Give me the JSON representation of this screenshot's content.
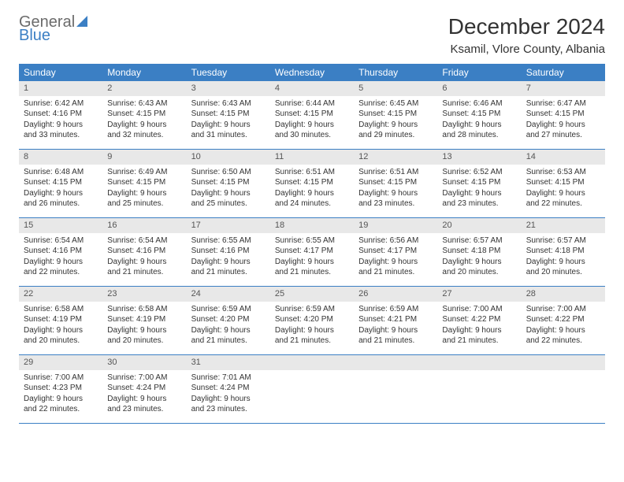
{
  "brand": {
    "general": "General",
    "blue": "Blue"
  },
  "title": "December 2024",
  "location": "Ksamil, Vlore County, Albania",
  "colors": {
    "header_bg": "#3b7fc4",
    "header_text": "#ffffff",
    "daynum_bg": "#e8e8e8",
    "row_border": "#3b7fc4",
    "logo_gray": "#6b6b6b",
    "logo_blue": "#3b7fc4"
  },
  "days_of_week": [
    "Sunday",
    "Monday",
    "Tuesday",
    "Wednesday",
    "Thursday",
    "Friday",
    "Saturday"
  ],
  "weeks": [
    [
      {
        "n": "1",
        "sunrise": "Sunrise: 6:42 AM",
        "sunset": "Sunset: 4:16 PM",
        "daylight": "Daylight: 9 hours and 33 minutes."
      },
      {
        "n": "2",
        "sunrise": "Sunrise: 6:43 AM",
        "sunset": "Sunset: 4:15 PM",
        "daylight": "Daylight: 9 hours and 32 minutes."
      },
      {
        "n": "3",
        "sunrise": "Sunrise: 6:43 AM",
        "sunset": "Sunset: 4:15 PM",
        "daylight": "Daylight: 9 hours and 31 minutes."
      },
      {
        "n": "4",
        "sunrise": "Sunrise: 6:44 AM",
        "sunset": "Sunset: 4:15 PM",
        "daylight": "Daylight: 9 hours and 30 minutes."
      },
      {
        "n": "5",
        "sunrise": "Sunrise: 6:45 AM",
        "sunset": "Sunset: 4:15 PM",
        "daylight": "Daylight: 9 hours and 29 minutes."
      },
      {
        "n": "6",
        "sunrise": "Sunrise: 6:46 AM",
        "sunset": "Sunset: 4:15 PM",
        "daylight": "Daylight: 9 hours and 28 minutes."
      },
      {
        "n": "7",
        "sunrise": "Sunrise: 6:47 AM",
        "sunset": "Sunset: 4:15 PM",
        "daylight": "Daylight: 9 hours and 27 minutes."
      }
    ],
    [
      {
        "n": "8",
        "sunrise": "Sunrise: 6:48 AM",
        "sunset": "Sunset: 4:15 PM",
        "daylight": "Daylight: 9 hours and 26 minutes."
      },
      {
        "n": "9",
        "sunrise": "Sunrise: 6:49 AM",
        "sunset": "Sunset: 4:15 PM",
        "daylight": "Daylight: 9 hours and 25 minutes."
      },
      {
        "n": "10",
        "sunrise": "Sunrise: 6:50 AM",
        "sunset": "Sunset: 4:15 PM",
        "daylight": "Daylight: 9 hours and 25 minutes."
      },
      {
        "n": "11",
        "sunrise": "Sunrise: 6:51 AM",
        "sunset": "Sunset: 4:15 PM",
        "daylight": "Daylight: 9 hours and 24 minutes."
      },
      {
        "n": "12",
        "sunrise": "Sunrise: 6:51 AM",
        "sunset": "Sunset: 4:15 PM",
        "daylight": "Daylight: 9 hours and 23 minutes."
      },
      {
        "n": "13",
        "sunrise": "Sunrise: 6:52 AM",
        "sunset": "Sunset: 4:15 PM",
        "daylight": "Daylight: 9 hours and 23 minutes."
      },
      {
        "n": "14",
        "sunrise": "Sunrise: 6:53 AM",
        "sunset": "Sunset: 4:15 PM",
        "daylight": "Daylight: 9 hours and 22 minutes."
      }
    ],
    [
      {
        "n": "15",
        "sunrise": "Sunrise: 6:54 AM",
        "sunset": "Sunset: 4:16 PM",
        "daylight": "Daylight: 9 hours and 22 minutes."
      },
      {
        "n": "16",
        "sunrise": "Sunrise: 6:54 AM",
        "sunset": "Sunset: 4:16 PM",
        "daylight": "Daylight: 9 hours and 21 minutes."
      },
      {
        "n": "17",
        "sunrise": "Sunrise: 6:55 AM",
        "sunset": "Sunset: 4:16 PM",
        "daylight": "Daylight: 9 hours and 21 minutes."
      },
      {
        "n": "18",
        "sunrise": "Sunrise: 6:55 AM",
        "sunset": "Sunset: 4:17 PM",
        "daylight": "Daylight: 9 hours and 21 minutes."
      },
      {
        "n": "19",
        "sunrise": "Sunrise: 6:56 AM",
        "sunset": "Sunset: 4:17 PM",
        "daylight": "Daylight: 9 hours and 21 minutes."
      },
      {
        "n": "20",
        "sunrise": "Sunrise: 6:57 AM",
        "sunset": "Sunset: 4:18 PM",
        "daylight": "Daylight: 9 hours and 20 minutes."
      },
      {
        "n": "21",
        "sunrise": "Sunrise: 6:57 AM",
        "sunset": "Sunset: 4:18 PM",
        "daylight": "Daylight: 9 hours and 20 minutes."
      }
    ],
    [
      {
        "n": "22",
        "sunrise": "Sunrise: 6:58 AM",
        "sunset": "Sunset: 4:19 PM",
        "daylight": "Daylight: 9 hours and 20 minutes."
      },
      {
        "n": "23",
        "sunrise": "Sunrise: 6:58 AM",
        "sunset": "Sunset: 4:19 PM",
        "daylight": "Daylight: 9 hours and 20 minutes."
      },
      {
        "n": "24",
        "sunrise": "Sunrise: 6:59 AM",
        "sunset": "Sunset: 4:20 PM",
        "daylight": "Daylight: 9 hours and 21 minutes."
      },
      {
        "n": "25",
        "sunrise": "Sunrise: 6:59 AM",
        "sunset": "Sunset: 4:20 PM",
        "daylight": "Daylight: 9 hours and 21 minutes."
      },
      {
        "n": "26",
        "sunrise": "Sunrise: 6:59 AM",
        "sunset": "Sunset: 4:21 PM",
        "daylight": "Daylight: 9 hours and 21 minutes."
      },
      {
        "n": "27",
        "sunrise": "Sunrise: 7:00 AM",
        "sunset": "Sunset: 4:22 PM",
        "daylight": "Daylight: 9 hours and 21 minutes."
      },
      {
        "n": "28",
        "sunrise": "Sunrise: 7:00 AM",
        "sunset": "Sunset: 4:22 PM",
        "daylight": "Daylight: 9 hours and 22 minutes."
      }
    ],
    [
      {
        "n": "29",
        "sunrise": "Sunrise: 7:00 AM",
        "sunset": "Sunset: 4:23 PM",
        "daylight": "Daylight: 9 hours and 22 minutes."
      },
      {
        "n": "30",
        "sunrise": "Sunrise: 7:00 AM",
        "sunset": "Sunset: 4:24 PM",
        "daylight": "Daylight: 9 hours and 23 minutes."
      },
      {
        "n": "31",
        "sunrise": "Sunrise: 7:01 AM",
        "sunset": "Sunset: 4:24 PM",
        "daylight": "Daylight: 9 hours and 23 minutes."
      },
      {
        "empty": true
      },
      {
        "empty": true
      },
      {
        "empty": true
      },
      {
        "empty": true
      }
    ]
  ]
}
